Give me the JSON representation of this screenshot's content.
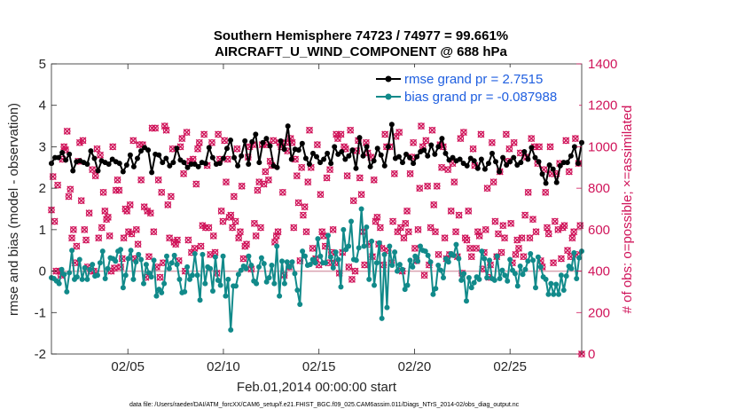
{
  "chart_data": {
    "type": "line",
    "title_line1": "Southern Hemisphere 74723 / 74977 = 99.661%",
    "title_line2": "AIRCRAFT_U_WIND_COMPONENT @ 688 hPa",
    "xlabel": "Feb.01,2014 00:00:00 start",
    "ylabel_left": "rmse and bias (model - observation)",
    "ylabel_right": "# of obs: o=possible; ×=assimilated",
    "footnote": "data file: /Users/raeder/DAI/ATM_forcXX/CAM6_setup/f.e21.FHIST_BGC.f09_025.CAM6assim.011/Diags_NTrS_2014-02/obs_diag_output.nc",
    "xlim": [
      1,
      28.75
    ],
    "x_ticks": [
      5,
      10,
      15,
      20,
      25
    ],
    "x_tick_labels": [
      "02/05",
      "02/10",
      "02/15",
      "02/20",
      "02/25"
    ],
    "ylim_left": [
      -2,
      5
    ],
    "y_ticks_left": [
      "-2",
      "-1",
      "0",
      "1",
      "2",
      "3",
      "4",
      "5"
    ],
    "ylim_right": [
      0,
      1400
    ],
    "y_ticks_right": [
      "0",
      "200",
      "400",
      "600",
      "800",
      "1000",
      "1200",
      "1400"
    ],
    "colors": {
      "rmse": "#000000",
      "bias": "#118a8a",
      "obs": "#d0145a",
      "zero_line": "#d9a3b0"
    },
    "series": [
      {
        "name": "rmse",
        "legend": "rmse grand pr = 2.7515",
        "values": [
          2.6,
          2.74,
          2.74,
          2.86,
          2.68,
          2.82,
          2.42,
          2.64,
          2.66,
          2.62,
          2.58,
          2.9,
          2.72,
          2.42,
          2.66,
          2.62,
          2.58,
          2.7,
          2.64,
          2.6,
          2.4,
          2.56,
          2.8,
          2.52,
          2.72,
          2.9,
          2.98,
          2.92,
          2.38,
          2.82,
          2.8,
          2.62,
          2.72,
          2.54,
          2.62,
          2.96,
          2.68,
          2.62,
          2.5,
          2.58,
          2.58,
          2.52,
          2.62,
          2.6,
          2.98,
          2.74,
          2.58,
          2.6,
          2.72,
          2.96,
          3.16,
          2.74,
          2.54,
          2.78,
          3.14,
          2.58,
          3.12,
          3.3,
          2.62,
          3.1,
          3.2,
          3.02,
          2.54,
          2.5,
          3.14,
          2.94,
          3.5,
          2.7,
          2.94,
          2.92,
          3.08,
          2.72,
          2.58,
          2.84,
          2.76,
          2.62,
          2.7,
          2.84,
          2.6,
          3.0,
          2.82,
          2.88,
          2.7,
          2.78,
          2.92,
          2.48,
          3.22,
          2.78,
          3.0,
          2.52,
          2.66,
          2.96,
          2.8,
          2.54,
          3.0,
          3.54,
          2.72,
          2.76,
          2.62,
          2.82,
          2.74,
          2.6,
          2.76,
          2.88,
          2.92,
          2.78,
          3.04,
          2.82,
          3.0,
          3.2,
          2.84,
          2.68,
          2.74,
          2.66,
          2.7,
          2.6,
          2.54,
          2.72,
          2.66,
          2.48,
          2.7,
          2.46,
          2.6,
          2.84,
          2.64,
          2.4,
          2.74,
          2.56,
          2.64,
          2.74,
          2.56,
          2.62,
          2.88,
          2.7,
          2.98,
          2.74,
          2.64,
          2.34,
          2.12,
          2.56,
          2.46,
          2.14,
          2.54,
          2.62,
          2.62,
          2.78,
          3.0,
          2.6,
          3.1
        ]
      },
      {
        "name": "bias",
        "legend": "bias grand pr = -0.087988",
        "values": [
          -0.16,
          -0.18,
          -0.24,
          -0.3,
          0.04,
          -0.08,
          -0.5,
          -0.04,
          0.5,
          -0.2,
          -0.14,
          0.28,
          -0.2,
          0.08,
          -0.2,
          0.04,
          0.16,
          -0.12,
          -0.1,
          0.2,
          0.48,
          -0.18,
          0.06,
          0.32,
          0.3,
          0.24,
          0.48,
          0.52,
          -0.4,
          -0.1,
          0.3,
          0.5,
          -0.2,
          0.22,
          0.4,
          0.28,
          -0.3,
          0.16,
          -0.04,
          -0.14,
          0.26,
          -0.6,
          -0.44,
          -0.52,
          -0.3,
          0.36,
          0.06,
          0.2,
          0.38,
          0.16,
          -0.2,
          -0.52,
          -0.5,
          0.1,
          -0.2,
          -0.1,
          0.42,
          -0.1,
          -0.7,
          0.4,
          -0.3,
          0.1,
          0.06,
          -0.48,
          0.34,
          -0.22,
          -0.34,
          0.36,
          -0.6,
          -0.2,
          -1.42,
          -0.36,
          -0.36,
          -0.08,
          0.02,
          0.12,
          0.06,
          0.36,
          0.14,
          -0.24,
          -0.3,
          0.1,
          0.32,
          0.18,
          -0.26,
          -0.16,
          0.14,
          -0.3,
          0.6,
          -0.6,
          0.24,
          -0.3,
          0.22,
          0.1,
          0.22,
          -0.06,
          -0.46,
          -0.8,
          0.48,
          0.36,
          0.14,
          0.16,
          0.28,
          0.2,
          0.78,
          0.36,
          0.2,
          0.2,
          0.86,
          0.34,
          0.08,
          0.46,
          0.28,
          -0.38,
          1.0,
          0.52,
          0.6,
          1.2,
          0.28,
          0.26,
          0.56,
          1.5,
          0.6,
          1.06,
          -0.2,
          0.72,
          -0.34,
          0.2,
          0.68,
          -1.14,
          0.4,
          -0.88,
          0.6,
          0.14,
          0.46,
          0.0,
          0.16,
          0.04,
          -0.44,
          -0.34,
          0.26,
          0.1,
          0.36,
          0.24,
          0.6,
          0.5,
          0.48,
          0.38,
          0.22,
          -0.56,
          -0.42,
          0.14,
          0.02,
          -0.16,
          0.3,
          0.22,
          0.42,
          0.38,
          0.64,
          0.3,
          -0.22,
          -0.06,
          -0.72,
          -0.16,
          -0.4,
          -0.28,
          -0.14,
          -0.2,
          0.48,
          0.3,
          -0.16,
          0.26,
          -0.18,
          -0.22,
          0.36,
          -0.18,
          0.02,
          -0.1,
          -0.24,
          0.28,
          0.02,
          -0.06,
          -0.36,
          0.12,
          -0.08,
          0.04,
          0.24,
          0.42,
          0.26,
          -0.4,
          0.34,
          0.1,
          -0.14,
          -0.2,
          -0.56,
          -0.3,
          -0.56,
          -0.32,
          -0.56,
          -0.1,
          -0.46,
          -0.12,
          0.12,
          0.06,
          0.44,
          -0.18,
          0.32,
          0.48
        ]
      },
      {
        "name": "obs",
        "values": [
          695,
          856,
          640,
          400,
          815,
          400,
          380,
          940,
          1000,
          985,
          1075,
          760,
          795,
          560,
          600,
          440,
          520,
          930,
          1020,
          740,
          1030,
          600,
          550,
          420,
          680,
          400,
          890,
          400,
          860,
          990,
          560,
          960,
          610,
          780,
          690,
          650,
          660,
          570,
          400,
          1000,
          415,
          790,
          840,
          790,
          420,
          460,
          560,
          700,
          690,
          590,
          720,
          580,
          1030,
          460,
          600,
          530,
          1010,
          840,
          1010,
          710,
          370,
          690,
          470,
          680,
          1090,
          590,
          1090,
          420,
          840,
          370,
          780,
          440,
          1100,
          1080,
          720,
          560,
          760,
          990,
          540,
          530,
          550,
          450,
          1000,
          1040,
          870,
          400,
          1070,
          550,
          930,
          490,
          940,
          510,
          820,
          990,
          1020,
          520,
          620,
          1060,
          610,
          910,
          610,
          480,
          1020,
          570,
          490,
          390,
          1060,
          940,
          690,
          640,
          1030,
          830,
          940,
          660,
          670,
          610,
          760,
          640,
          990,
          560,
          590,
          810,
          460,
          520,
          530,
          950,
          1000,
          410,
          1010,
          630,
          570,
          790,
          830,
          610,
          1010,
          820,
          880,
          1010,
          840,
          930,
          910,
          1030,
          540,
          570,
          590,
          1020,
          1000,
          780,
          380,
          1020,
          980,
          420,
          1040,
          1020,
          610,
          940,
          860,
          730,
          450,
          900,
          670,
          710,
          590,
          830,
          1080,
          900,
          510,
          450,
          460,
          1010,
          430,
          770,
          590,
          570,
          520,
          850,
          440,
          890,
          490,
          600,
          440,
          1060,
          1040,
          390,
          1060,
          490,
          1000,
          990,
          860,
          420,
          1080,
          360,
          740,
          400,
          980,
          1030,
          850,
          770,
          590,
          430,
          1020,
          970,
          530,
          950,
          470,
          840,
          640,
          660,
          530,
          610,
          510,
          430,
          1060,
          1000,
          500,
          1000,
          440,
          640,
          870,
          1050,
          590,
          1070,
          610,
          400,
          560,
          630,
          690,
          590,
          870,
          950,
          1020,
          510,
          450,
          600,
          800,
          1100,
          1000,
          380,
          1030,
          810,
          430,
          610,
          1080,
          720,
          590,
          810,
          480,
          1010,
          900,
          1000,
          560,
          460,
          890,
          480,
          690,
          920,
          830,
          590,
          470,
          670,
          1040,
          390,
          1070,
          560,
          550,
          690,
          510,
          470,
          990,
          910,
          510,
          590,
          570,
          1060,
          410,
          490,
          600,
          800,
          370,
          430,
          1020,
          830,
          640,
          470,
          580,
          880,
          490,
          620,
          560,
          1060,
          930,
          990,
          630,
          440,
          1020,
          480,
          550,
          510,
          970,
          560,
          470,
          670,
          950,
          780,
          560,
          1040,
          650,
          1000,
          590,
          920,
          1000,
          450,
          420,
          890,
          780,
          610,
          580,
          1000,
          870,
          440,
          640,
          870,
          600,
          920,
          460,
          610,
          620,
          1030,
          500,
          880,
          470,
          560,
          590,
          1040,
          480,
          920,
          620,
          0
        ]
      }
    ]
  }
}
